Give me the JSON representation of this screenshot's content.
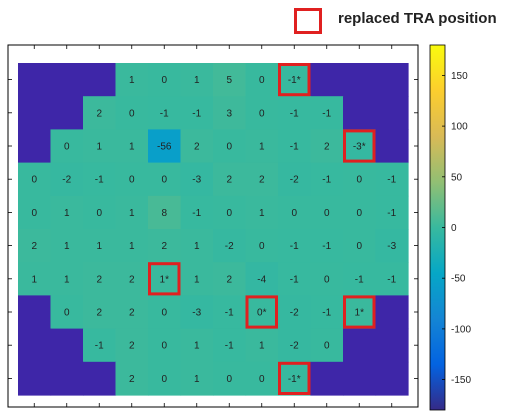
{
  "legend": {
    "label": "replaced TRA position",
    "box_color": "#e02020"
  },
  "chart_data": {
    "type": "heatmap",
    "rows": [
      [
        null,
        null,
        null,
        "1",
        "0",
        "1",
        "5",
        "0",
        "-1*",
        null,
        null,
        null
      ],
      [
        null,
        null,
        "2",
        "0",
        "-1",
        "-1",
        "3",
        "0",
        "-1",
        "-1",
        null,
        null
      ],
      [
        null,
        "0",
        "1",
        "1",
        "-56",
        "2",
        "0",
        "1",
        "-1",
        "2",
        "-3*",
        null
      ],
      [
        "0",
        "-2",
        "-1",
        "0",
        "0",
        "-3",
        "2",
        "2",
        "-2",
        "-1",
        "0",
        "-1"
      ],
      [
        "0",
        "1",
        "0",
        "1",
        "8",
        "-1",
        "0",
        "1",
        "0",
        "0",
        "0",
        "-1"
      ],
      [
        "2",
        "1",
        "1",
        "1",
        "2",
        "1",
        "-2",
        "0",
        "-1",
        "-1",
        "0",
        "-3"
      ],
      [
        "1",
        "1",
        "2",
        "2",
        "1*",
        "1",
        "2",
        "-4",
        "-1",
        "0",
        "-1",
        "-1"
      ],
      [
        null,
        "0",
        "2",
        "2",
        "0",
        "-3",
        "-1",
        "0*",
        "-2",
        "-1",
        "1*",
        null
      ],
      [
        null,
        null,
        "-1",
        "2",
        "0",
        "1",
        "-1",
        "1",
        "-2",
        "0",
        null,
        null
      ],
      [
        null,
        null,
        null,
        "2",
        "0",
        "1",
        "0",
        "0",
        "-1*",
        null,
        null,
        null
      ]
    ],
    "highlighted_cells": [
      [
        0,
        8
      ],
      [
        2,
        10
      ],
      [
        6,
        4
      ],
      [
        7,
        7
      ],
      [
        7,
        10
      ],
      [
        9,
        8
      ]
    ],
    "colorbar": {
      "min": -180,
      "max": 180,
      "ticks": [
        150,
        100,
        50,
        0,
        -50,
        -100,
        -150
      ]
    },
    "colormap": "parula",
    "masked_color": "#3e26a8",
    "highlight_color": "#e02020"
  }
}
